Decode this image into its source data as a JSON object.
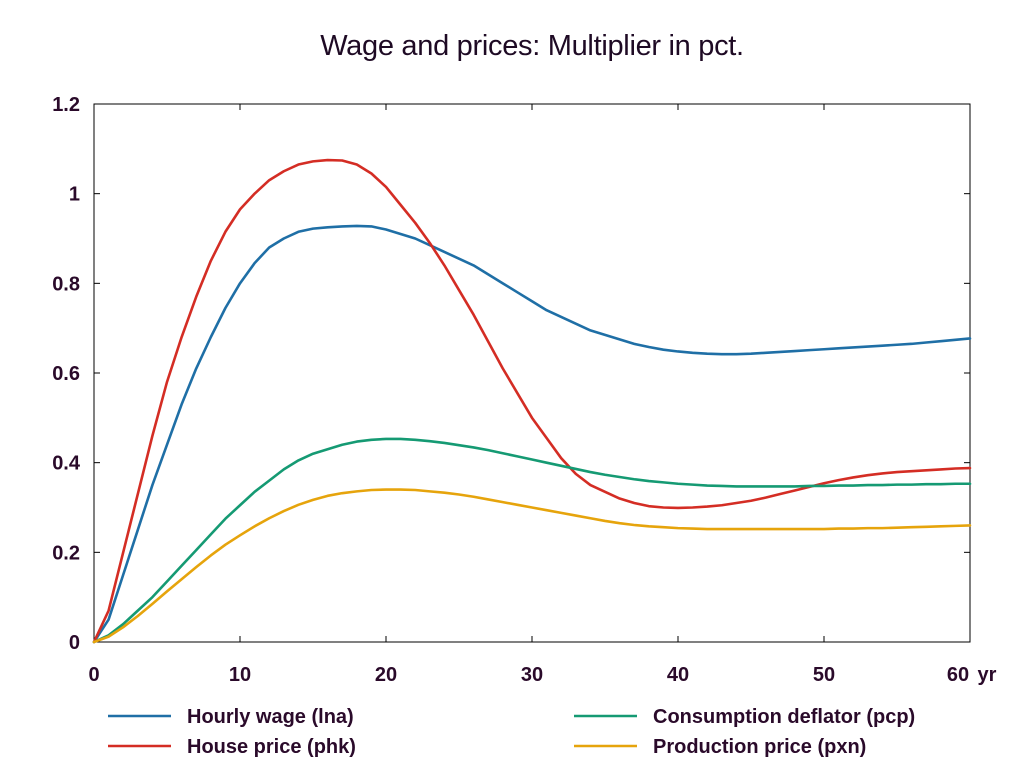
{
  "chart_data": {
    "type": "line",
    "title": "Wage and prices: Multiplier in pct.",
    "xlabel": "",
    "x_unit": "yr",
    "ylabel": "",
    "xlim": [
      0,
      60
    ],
    "ylim": [
      0,
      1.2
    ],
    "xticks": [
      0,
      10,
      20,
      30,
      40,
      50,
      60
    ],
    "yticks": [
      0,
      0.2,
      0.4,
      0.6,
      0.8,
      1,
      1.2
    ],
    "ytick_labels": [
      "0",
      "0.2",
      "0.4",
      "0.6",
      "0.8",
      "1",
      "1.2"
    ],
    "x": [
      0,
      1,
      2,
      3,
      4,
      5,
      6,
      7,
      8,
      9,
      10,
      11,
      12,
      13,
      14,
      15,
      16,
      17,
      18,
      19,
      20,
      21,
      22,
      23,
      24,
      25,
      26,
      27,
      28,
      29,
      30,
      31,
      32,
      33,
      34,
      35,
      36,
      37,
      38,
      39,
      40,
      41,
      42,
      43,
      44,
      45,
      46,
      47,
      48,
      49,
      50,
      51,
      52,
      53,
      54,
      55,
      56,
      57,
      58,
      59,
      60
    ],
    "grid": false,
    "legend_position": "bottom",
    "series": [
      {
        "name": "Hourly wage (lna)",
        "color": "#1f6fa6",
        "values": [
          0,
          0.05,
          0.15,
          0.25,
          0.35,
          0.44,
          0.53,
          0.61,
          0.68,
          0.745,
          0.8,
          0.845,
          0.88,
          0.9,
          0.915,
          0.922,
          0.925,
          0.927,
          0.928,
          0.927,
          0.92,
          0.91,
          0.9,
          0.885,
          0.87,
          0.855,
          0.84,
          0.82,
          0.8,
          0.78,
          0.76,
          0.74,
          0.725,
          0.71,
          0.695,
          0.685,
          0.675,
          0.665,
          0.658,
          0.652,
          0.648,
          0.645,
          0.643,
          0.642,
          0.642,
          0.643,
          0.645,
          0.647,
          0.649,
          0.651,
          0.653,
          0.655,
          0.657,
          0.659,
          0.661,
          0.663,
          0.665,
          0.668,
          0.671,
          0.674,
          0.677
        ]
      },
      {
        "name": "House price (phk)",
        "color": "#d42d24",
        "values": [
          0,
          0.07,
          0.2,
          0.33,
          0.46,
          0.58,
          0.68,
          0.77,
          0.85,
          0.915,
          0.965,
          1.0,
          1.03,
          1.05,
          1.065,
          1.072,
          1.075,
          1.074,
          1.065,
          1.045,
          1.015,
          0.975,
          0.935,
          0.89,
          0.84,
          0.785,
          0.73,
          0.67,
          0.61,
          0.555,
          0.5,
          0.455,
          0.41,
          0.375,
          0.35,
          0.335,
          0.32,
          0.31,
          0.303,
          0.3,
          0.299,
          0.3,
          0.302,
          0.305,
          0.31,
          0.315,
          0.322,
          0.33,
          0.338,
          0.346,
          0.354,
          0.361,
          0.367,
          0.372,
          0.376,
          0.379,
          0.381,
          0.383,
          0.385,
          0.387,
          0.388
        ]
      },
      {
        "name": "Consumption deflator (pcp)",
        "color": "#159a73",
        "values": [
          0,
          0.015,
          0.04,
          0.07,
          0.1,
          0.135,
          0.17,
          0.205,
          0.24,
          0.275,
          0.305,
          0.335,
          0.36,
          0.385,
          0.405,
          0.42,
          0.43,
          0.44,
          0.447,
          0.451,
          0.453,
          0.453,
          0.451,
          0.448,
          0.444,
          0.439,
          0.434,
          0.428,
          0.421,
          0.414,
          0.407,
          0.4,
          0.393,
          0.386,
          0.379,
          0.373,
          0.368,
          0.363,
          0.359,
          0.356,
          0.353,
          0.351,
          0.349,
          0.348,
          0.347,
          0.347,
          0.347,
          0.347,
          0.347,
          0.348,
          0.348,
          0.349,
          0.349,
          0.35,
          0.35,
          0.351,
          0.351,
          0.352,
          0.352,
          0.353,
          0.353
        ]
      },
      {
        "name": "Production price (pxn)",
        "color": "#e6a40c",
        "values": [
          0,
          0.012,
          0.033,
          0.058,
          0.085,
          0.113,
          0.14,
          0.167,
          0.193,
          0.217,
          0.238,
          0.258,
          0.276,
          0.292,
          0.306,
          0.317,
          0.326,
          0.332,
          0.336,
          0.339,
          0.34,
          0.34,
          0.339,
          0.336,
          0.333,
          0.329,
          0.324,
          0.318,
          0.312,
          0.306,
          0.3,
          0.294,
          0.288,
          0.282,
          0.276,
          0.27,
          0.265,
          0.261,
          0.258,
          0.256,
          0.254,
          0.253,
          0.252,
          0.252,
          0.252,
          0.252,
          0.252,
          0.252,
          0.252,
          0.252,
          0.252,
          0.253,
          0.253,
          0.254,
          0.254,
          0.255,
          0.256,
          0.257,
          0.258,
          0.259,
          0.26
        ]
      }
    ]
  }
}
